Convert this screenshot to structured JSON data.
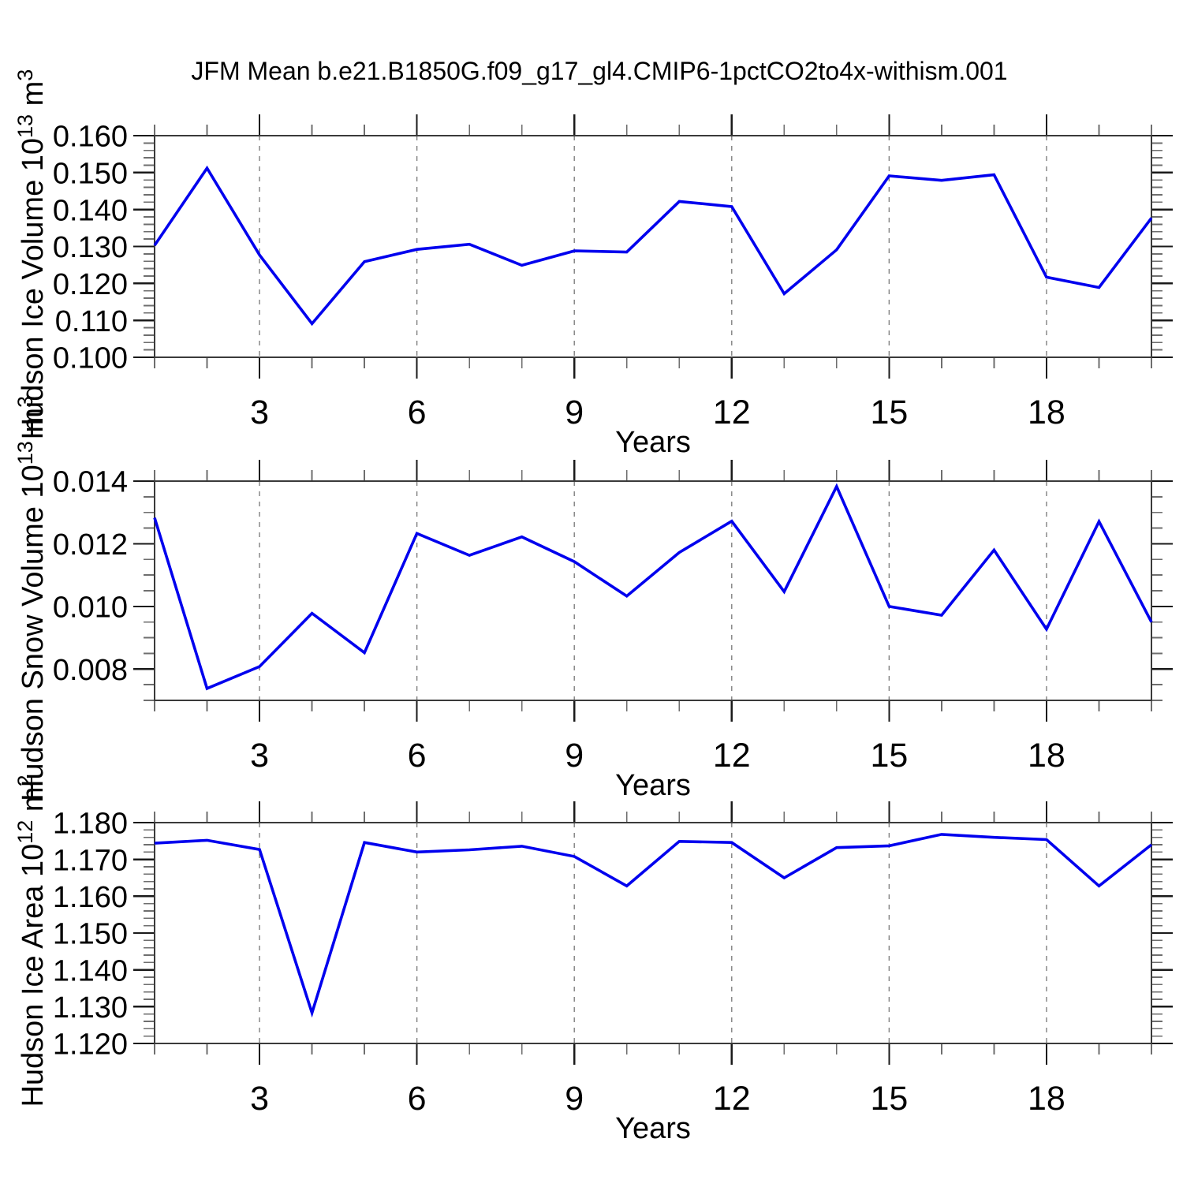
{
  "title": "JFM Mean b.e21.B1850G.f09_g17_gl4.CMIP6-1pctCO2to4x-withism.001",
  "style": {
    "line_color": "#0000ee",
    "frame_color": "#3a3a3a",
    "major_tick_color": "#1a1a1a",
    "minor_tick_color": "#6e6e6e",
    "grid_color": "#808080",
    "text_color": "#000000"
  },
  "chart_data": [
    {
      "type": "line",
      "name": "hudson-ice-volume",
      "ylabel": "Hudson Ice Volume 10^13 m^3",
      "ylabel_parts": [
        {
          "t": "Hudson Ice Volume 10"
        },
        {
          "t": "13",
          "sup": true
        },
        {
          "t": " m"
        },
        {
          "t": "3",
          "sup": true
        }
      ],
      "xlabel": "Years",
      "x": [
        1,
        2,
        3,
        4,
        5,
        6,
        7,
        8,
        9,
        10,
        11,
        12,
        13,
        14,
        15,
        16,
        17,
        18,
        19,
        20
      ],
      "values": [
        0.1303,
        0.1512,
        0.1277,
        0.1091,
        0.1259,
        0.1292,
        0.1306,
        0.1249,
        0.1288,
        0.1285,
        0.1422,
        0.1408,
        0.1172,
        0.1291,
        0.1491,
        0.1479,
        0.1494,
        0.1217,
        0.1189,
        0.1377
      ],
      "xlim": [
        1,
        20
      ],
      "ylim": [
        0.1,
        0.16
      ],
      "ytick_major": [
        0.1,
        0.11,
        0.12,
        0.13,
        0.14,
        0.15,
        0.16
      ],
      "ytick_labels": [
        "0.100",
        "0.110",
        "0.120",
        "0.130",
        "0.140",
        "0.150",
        "0.160"
      ],
      "ytick_minor_step": 0.002,
      "xtick_major": [
        3,
        6,
        9,
        12,
        15,
        18
      ],
      "xtick_labels": [
        "3",
        "6",
        "9",
        "12",
        "15",
        "18"
      ],
      "xtick_minor_step": 1,
      "grid_x": [
        3,
        6,
        9,
        12,
        15,
        18
      ],
      "grid_on": true,
      "legend": "none"
    },
    {
      "type": "line",
      "name": "hudson-snow-volume",
      "ylabel": "Hudson Snow Volume 10^13 m^3",
      "ylabel_parts": [
        {
          "t": "Hudson Snow Volume 10"
        },
        {
          "t": "13",
          "sup": true
        },
        {
          "t": " m"
        },
        {
          "t": "3",
          "sup": true
        }
      ],
      "xlabel": "Years",
      "x": [
        1,
        2,
        3,
        4,
        5,
        6,
        7,
        8,
        9,
        10,
        11,
        12,
        13,
        14,
        15,
        16,
        17,
        18,
        19,
        20
      ],
      "values": [
        0.01283,
        0.00738,
        0.00808,
        0.00978,
        0.00852,
        0.01233,
        0.01163,
        0.01222,
        0.01143,
        0.01033,
        0.01172,
        0.01272,
        0.01047,
        0.01383,
        0.01,
        0.00972,
        0.0118,
        0.00927,
        0.01271,
        0.0095
      ],
      "xlim": [
        1,
        20
      ],
      "ylim": [
        0.007,
        0.014
      ],
      "ytick_major": [
        0.008,
        0.01,
        0.012,
        0.014
      ],
      "ytick_labels": [
        "0.008",
        "0.010",
        "0.012",
        "0.014"
      ],
      "ytick_minor_step": 0.0005,
      "xtick_major": [
        3,
        6,
        9,
        12,
        15,
        18
      ],
      "xtick_labels": [
        "3",
        "6",
        "9",
        "12",
        "15",
        "18"
      ],
      "xtick_minor_step": 1,
      "grid_x": [
        3,
        6,
        9,
        12,
        15,
        18
      ],
      "grid_on": true,
      "legend": "none"
    },
    {
      "type": "line",
      "name": "hudson-ice-area",
      "ylabel": "Hudson Ice Area 10^12 m^2",
      "ylabel_parts": [
        {
          "t": "Hudson Ice Area 10"
        },
        {
          "t": "12",
          "sup": true
        },
        {
          "t": " m"
        },
        {
          "t": "2",
          "sup": true
        }
      ],
      "xlabel": "Years",
      "x": [
        1,
        2,
        3,
        4,
        5,
        6,
        7,
        8,
        9,
        10,
        11,
        12,
        13,
        14,
        15,
        16,
        17,
        18,
        19,
        20
      ],
      "values": [
        1.1744,
        1.1752,
        1.1727,
        1.1283,
        1.1746,
        1.172,
        1.1726,
        1.1736,
        1.1708,
        1.1628,
        1.1749,
        1.1746,
        1.165,
        1.1732,
        1.1737,
        1.1768,
        1.176,
        1.1754,
        1.1628,
        1.174
      ],
      "xlim": [
        1,
        20
      ],
      "ylim": [
        1.12,
        1.18
      ],
      "ytick_major": [
        1.12,
        1.13,
        1.14,
        1.15,
        1.16,
        1.17,
        1.18
      ],
      "ytick_labels": [
        "1.120",
        "1.130",
        "1.140",
        "1.150",
        "1.160",
        "1.170",
        "1.180"
      ],
      "ytick_minor_step": 0.002,
      "xtick_major": [
        3,
        6,
        9,
        12,
        15,
        18
      ],
      "xtick_labels": [
        "3",
        "6",
        "9",
        "12",
        "15",
        "18"
      ],
      "xtick_minor_step": 1,
      "grid_x": [
        3,
        6,
        9,
        12,
        15,
        18
      ],
      "grid_on": true,
      "legend": "none"
    }
  ]
}
